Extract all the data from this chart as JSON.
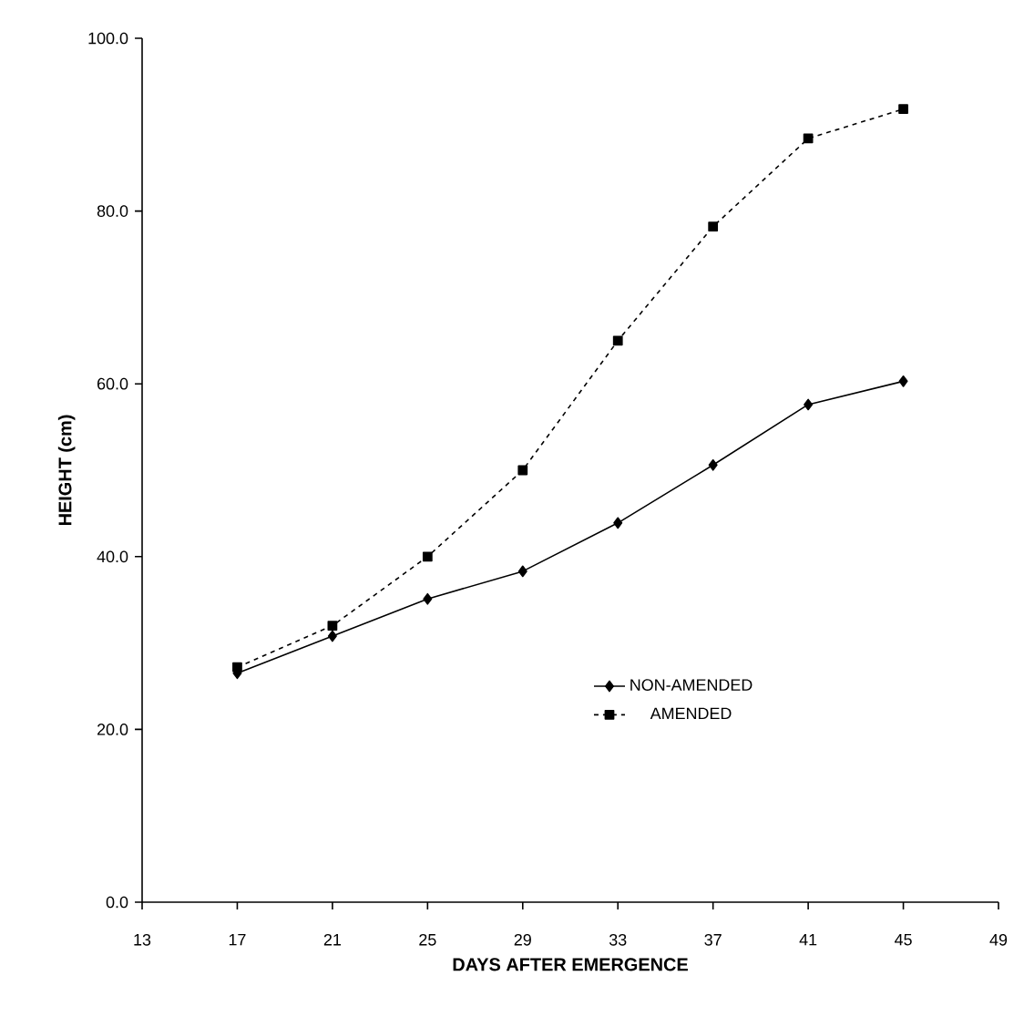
{
  "chart_data": {
    "type": "line",
    "xlabel": "DAYS AFTER EMERGENCE",
    "ylabel": "HEIGHT (cm)",
    "x": [
      17,
      21,
      25,
      29,
      33,
      37,
      41,
      45
    ],
    "series": [
      {
        "name": "NON-AMENDED",
        "color": "#000000",
        "marker": "diamond",
        "line_style": "solid",
        "values": [
          26.5,
          30.8,
          35.1,
          38.3,
          43.9,
          50.6,
          57.6,
          60.3
        ]
      },
      {
        "name": "AMENDED",
        "color": "#000000",
        "marker": "square",
        "line_style": "dotted",
        "values": [
          27.2,
          32.0,
          40.0,
          50.0,
          65.0,
          78.2,
          88.4,
          91.8
        ]
      }
    ],
    "xlim": [
      13,
      49
    ],
    "xticks": [
      13,
      17,
      21,
      25,
      29,
      33,
      37,
      41,
      45,
      49
    ],
    "ylim": [
      0,
      100
    ],
    "yticks": [
      {
        "value": 0,
        "label": "0.0"
      },
      {
        "value": 20,
        "label": "20.0"
      },
      {
        "value": 40,
        "label": "40.0"
      },
      {
        "value": 60,
        "label": "60.0"
      },
      {
        "value": 80,
        "label": "80.0"
      },
      {
        "value": 100,
        "label": "100.0"
      }
    ],
    "grid": false,
    "legend": "bottom right"
  }
}
